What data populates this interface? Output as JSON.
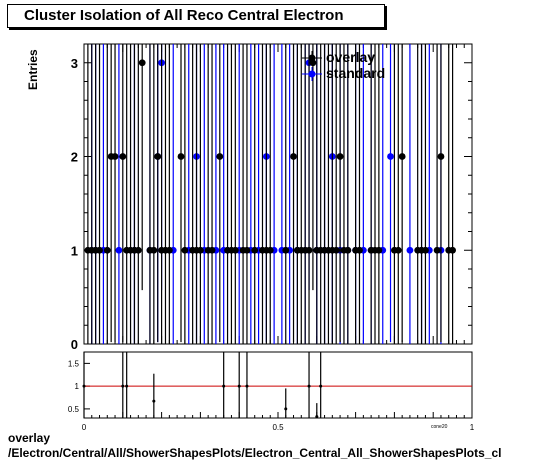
{
  "title": "Cluster Isolation of All Reco Central Electron",
  "ylabel": "Entries",
  "footer_line1": "overlay",
  "footer_line2": "/Electron/Central/All/ShowerShapesPlots/Electron_Central_All_ShowerShapesPlots_cl",
  "colors": {
    "overlay": "#000000",
    "standard": "#0000ff",
    "ratio_line": "#cc0000"
  },
  "chart_data": [
    {
      "type": "scatter",
      "xlim": [
        0,
        1
      ],
      "ylim": [
        0,
        3.2
      ],
      "yticks": [
        0,
        1,
        2,
        3
      ],
      "legend_position": "top-right",
      "series": [
        {
          "name": "overlay",
          "x": [
            0.01,
            0.02,
            0.03,
            0.04,
            0.06,
            0.07,
            0.08,
            0.1,
            0.11,
            0.12,
            0.13,
            0.14,
            0.15,
            0.17,
            0.18,
            0.19,
            0.2,
            0.21,
            0.22,
            0.25,
            0.26,
            0.28,
            0.29,
            0.3,
            0.32,
            0.33,
            0.35,
            0.37,
            0.38,
            0.39,
            0.41,
            0.42,
            0.44,
            0.46,
            0.47,
            0.48,
            0.52,
            0.54,
            0.55,
            0.56,
            0.57,
            0.58,
            0.59,
            0.6,
            0.61,
            0.62,
            0.63,
            0.64,
            0.65,
            0.66,
            0.67,
            0.68,
            0.7,
            0.71,
            0.74,
            0.75,
            0.76,
            0.8,
            0.81,
            0.82,
            0.86,
            0.87,
            0.88,
            0.91,
            0.92,
            0.94,
            0.95
          ],
          "y": [
            1,
            1,
            1,
            1,
            1,
            2,
            2,
            2,
            1,
            1,
            1,
            1,
            3,
            1,
            1,
            2,
            1,
            1,
            1,
            2,
            1,
            1,
            1,
            1,
            1,
            1,
            2,
            1,
            1,
            1,
            1,
            1,
            1,
            1,
            1,
            1,
            1,
            2,
            1,
            1,
            1,
            1,
            3,
            1,
            1,
            1,
            1,
            1,
            1,
            2,
            1,
            1,
            1,
            1,
            1,
            1,
            1,
            1,
            1,
            2,
            1,
            1,
            1,
            1,
            2,
            1,
            1
          ]
        },
        {
          "name": "standard",
          "x": [
            0.02,
            0.03,
            0.05,
            0.09,
            0.13,
            0.17,
            0.19,
            0.2,
            0.23,
            0.27,
            0.29,
            0.31,
            0.34,
            0.36,
            0.4,
            0.43,
            0.45,
            0.47,
            0.49,
            0.51,
            0.53,
            0.55,
            0.57,
            0.58,
            0.6,
            0.62,
            0.64,
            0.66,
            0.68,
            0.7,
            0.72,
            0.74,
            0.77,
            0.79,
            0.84,
            0.87,
            0.89,
            0.92
          ],
          "y": [
            1,
            1,
            1,
            1,
            1,
            1,
            2,
            3,
            1,
            1,
            2,
            1,
            1,
            1,
            1,
            1,
            1,
            2,
            1,
            1,
            1,
            1,
            1,
            3,
            1,
            1,
            2,
            1,
            1,
            1,
            1,
            1,
            1,
            2,
            1,
            1,
            1,
            1
          ]
        }
      ]
    },
    {
      "type": "scatter",
      "xlim": [
        0,
        1
      ],
      "ylim": [
        0.3,
        1.75
      ],
      "yticks": [
        0.5,
        1,
        1.5
      ],
      "yticklabels": [
        "0.5",
        "1",
        "1.5"
      ],
      "xticks": [
        0,
        0.5,
        1
      ],
      "xticklabels": [
        "0",
        "0.5",
        "1"
      ],
      "xlabel": "cone20",
      "reference_line": 1,
      "series": [
        {
          "name": "",
          "x": [
            0,
            0.1,
            0.11,
            0.18,
            0.36,
            0.4,
            0.42,
            0.52,
            0.58,
            0.6,
            0.61
          ],
          "y": [
            1,
            1,
            1,
            0.67,
            1,
            1,
            1,
            0.5,
            1,
            0.33,
            1
          ]
        }
      ]
    }
  ]
}
